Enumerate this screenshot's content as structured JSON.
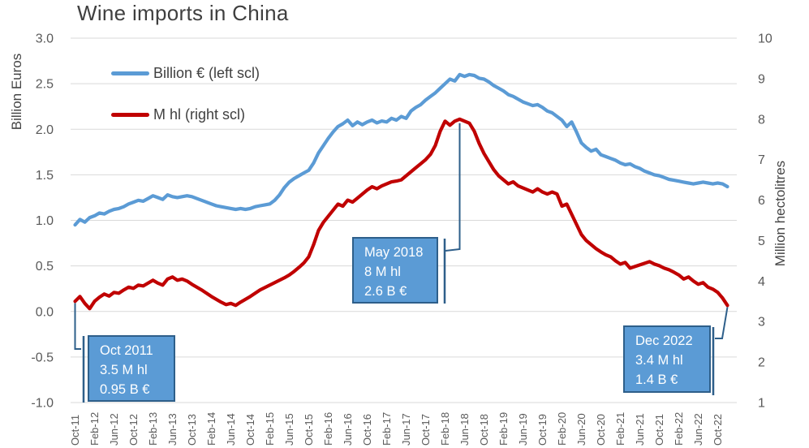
{
  "chart_data": {
    "type": "line",
    "title": "Wine imports in China",
    "left_axis": {
      "title": "Billion Euros",
      "min": -1.0,
      "max": 3.0,
      "tick_step": 0.5,
      "tick_labels": [
        "3.0",
        "2.5",
        "2.0",
        "1.5",
        "1.0",
        "0.5",
        "0.0",
        "-0.5",
        "-1.0"
      ]
    },
    "right_axis": {
      "title": "Million hectolitres",
      "min": 1,
      "max": 10,
      "tick_step": 1,
      "tick_labels": [
        "10",
        "9",
        "8",
        "7",
        "6",
        "5",
        "4",
        "3",
        "2",
        "1"
      ]
    },
    "x": {
      "unit": "month",
      "n_points": 135,
      "start_label": "Oct-11",
      "end_label": "Dec-22",
      "tick_every_months": 4,
      "tick_labels": [
        "Oct-11",
        "Feb-12",
        "Jun-12",
        "Oct-12",
        "Feb-13",
        "Jun-13",
        "Oct-13",
        "Feb-14",
        "Jun-14",
        "Oct-14",
        "Feb-15",
        "Jun-15",
        "Oct-15",
        "Feb-16",
        "Jun-16",
        "Oct-16",
        "Feb-17",
        "Jun-17",
        "Oct-17",
        "Feb-18",
        "Jun-18",
        "Oct-18",
        "Feb-19",
        "Jun-19",
        "Oct-19",
        "Feb-20",
        "Jun-20",
        "Oct-20",
        "Feb-21",
        "Jun-21",
        "Oct-21",
        "Feb-22",
        "Jun-22",
        "Oct-22"
      ]
    },
    "grid": true,
    "legend": {
      "position": "inside-top-left"
    },
    "colors": {
      "blue_line": "#5B9BD5",
      "red_line": "#C00000",
      "callout": "#2E5F8A",
      "box_fill": "#5B9BD5",
      "box_border": "#2E5F8A",
      "grid": "#D9D9D9",
      "tick_text": "#595959",
      "title_text": "#3F3F3F"
    },
    "series": [
      {
        "name": "Billion € (left scl)",
        "axis": "left",
        "color": "#5B9BD5",
        "values": [
          0.95,
          1.01,
          0.98,
          1.03,
          1.05,
          1.08,
          1.07,
          1.1,
          1.12,
          1.13,
          1.15,
          1.18,
          1.2,
          1.22,
          1.21,
          1.24,
          1.27,
          1.25,
          1.23,
          1.28,
          1.26,
          1.25,
          1.26,
          1.27,
          1.26,
          1.24,
          1.22,
          1.2,
          1.18,
          1.16,
          1.15,
          1.14,
          1.13,
          1.12,
          1.13,
          1.12,
          1.13,
          1.15,
          1.16,
          1.17,
          1.18,
          1.22,
          1.28,
          1.36,
          1.42,
          1.46,
          1.49,
          1.52,
          1.55,
          1.63,
          1.74,
          1.82,
          1.9,
          1.97,
          2.03,
          2.06,
          2.1,
          2.04,
          2.08,
          2.05,
          2.08,
          2.1,
          2.07,
          2.09,
          2.08,
          2.12,
          2.1,
          2.14,
          2.12,
          2.2,
          2.24,
          2.27,
          2.32,
          2.36,
          2.4,
          2.45,
          2.5,
          2.55,
          2.53,
          2.6,
          2.58,
          2.6,
          2.59,
          2.56,
          2.55,
          2.52,
          2.48,
          2.45,
          2.42,
          2.38,
          2.36,
          2.33,
          2.3,
          2.28,
          2.26,
          2.27,
          2.24,
          2.2,
          2.18,
          2.14,
          2.1,
          2.03,
          2.08,
          1.97,
          1.85,
          1.8,
          1.76,
          1.78,
          1.72,
          1.7,
          1.68,
          1.66,
          1.63,
          1.61,
          1.62,
          1.59,
          1.57,
          1.54,
          1.52,
          1.5,
          1.49,
          1.47,
          1.45,
          1.44,
          1.43,
          1.42,
          1.41,
          1.4,
          1.41,
          1.42,
          1.41,
          1.4,
          1.41,
          1.4,
          1.37
        ]
      },
      {
        "name": "M hl (right scl)",
        "axis": "right",
        "color": "#C00000",
        "values": [
          3.5,
          3.62,
          3.45,
          3.32,
          3.5,
          3.6,
          3.68,
          3.63,
          3.72,
          3.7,
          3.78,
          3.85,
          3.82,
          3.9,
          3.88,
          3.95,
          4.02,
          3.95,
          3.9,
          4.05,
          4.1,
          4.02,
          4.05,
          4.0,
          3.92,
          3.85,
          3.78,
          3.7,
          3.62,
          3.55,
          3.48,
          3.42,
          3.45,
          3.4,
          3.48,
          3.55,
          3.62,
          3.7,
          3.78,
          3.84,
          3.9,
          3.96,
          4.02,
          4.08,
          4.15,
          4.24,
          4.34,
          4.45,
          4.6,
          4.9,
          5.25,
          5.45,
          5.6,
          5.75,
          5.9,
          5.85,
          6.0,
          5.95,
          6.05,
          6.15,
          6.25,
          6.33,
          6.28,
          6.35,
          6.4,
          6.45,
          6.47,
          6.5,
          6.6,
          6.7,
          6.8,
          6.9,
          7.0,
          7.13,
          7.35,
          7.7,
          7.95,
          7.85,
          7.95,
          8.0,
          7.95,
          7.9,
          7.7,
          7.4,
          7.15,
          6.95,
          6.75,
          6.6,
          6.5,
          6.4,
          6.45,
          6.35,
          6.3,
          6.25,
          6.2,
          6.28,
          6.2,
          6.15,
          6.2,
          6.15,
          5.85,
          5.9,
          5.65,
          5.4,
          5.15,
          5.0,
          4.9,
          4.8,
          4.72,
          4.65,
          4.6,
          4.5,
          4.42,
          4.46,
          4.32,
          4.36,
          4.4,
          4.44,
          4.48,
          4.42,
          4.38,
          4.32,
          4.28,
          4.22,
          4.15,
          4.05,
          4.1,
          4.0,
          3.92,
          3.96,
          3.85,
          3.8,
          3.72,
          3.58,
          3.4
        ]
      }
    ],
    "annotations": [
      {
        "point_label": "Oct 2011",
        "month_index": 0,
        "lines": [
          "Oct 2011",
          "3.5 M hl",
          "0.95 B €"
        ]
      },
      {
        "point_label": "May 2018",
        "month_index": 79,
        "lines": [
          "May 2018",
          "8 M hl",
          "2.6 B €"
        ]
      },
      {
        "point_label": "Dec 2022",
        "month_index": 134,
        "lines": [
          "Dec 2022",
          "3.4 M hl",
          "1.4 B €"
        ]
      }
    ]
  }
}
